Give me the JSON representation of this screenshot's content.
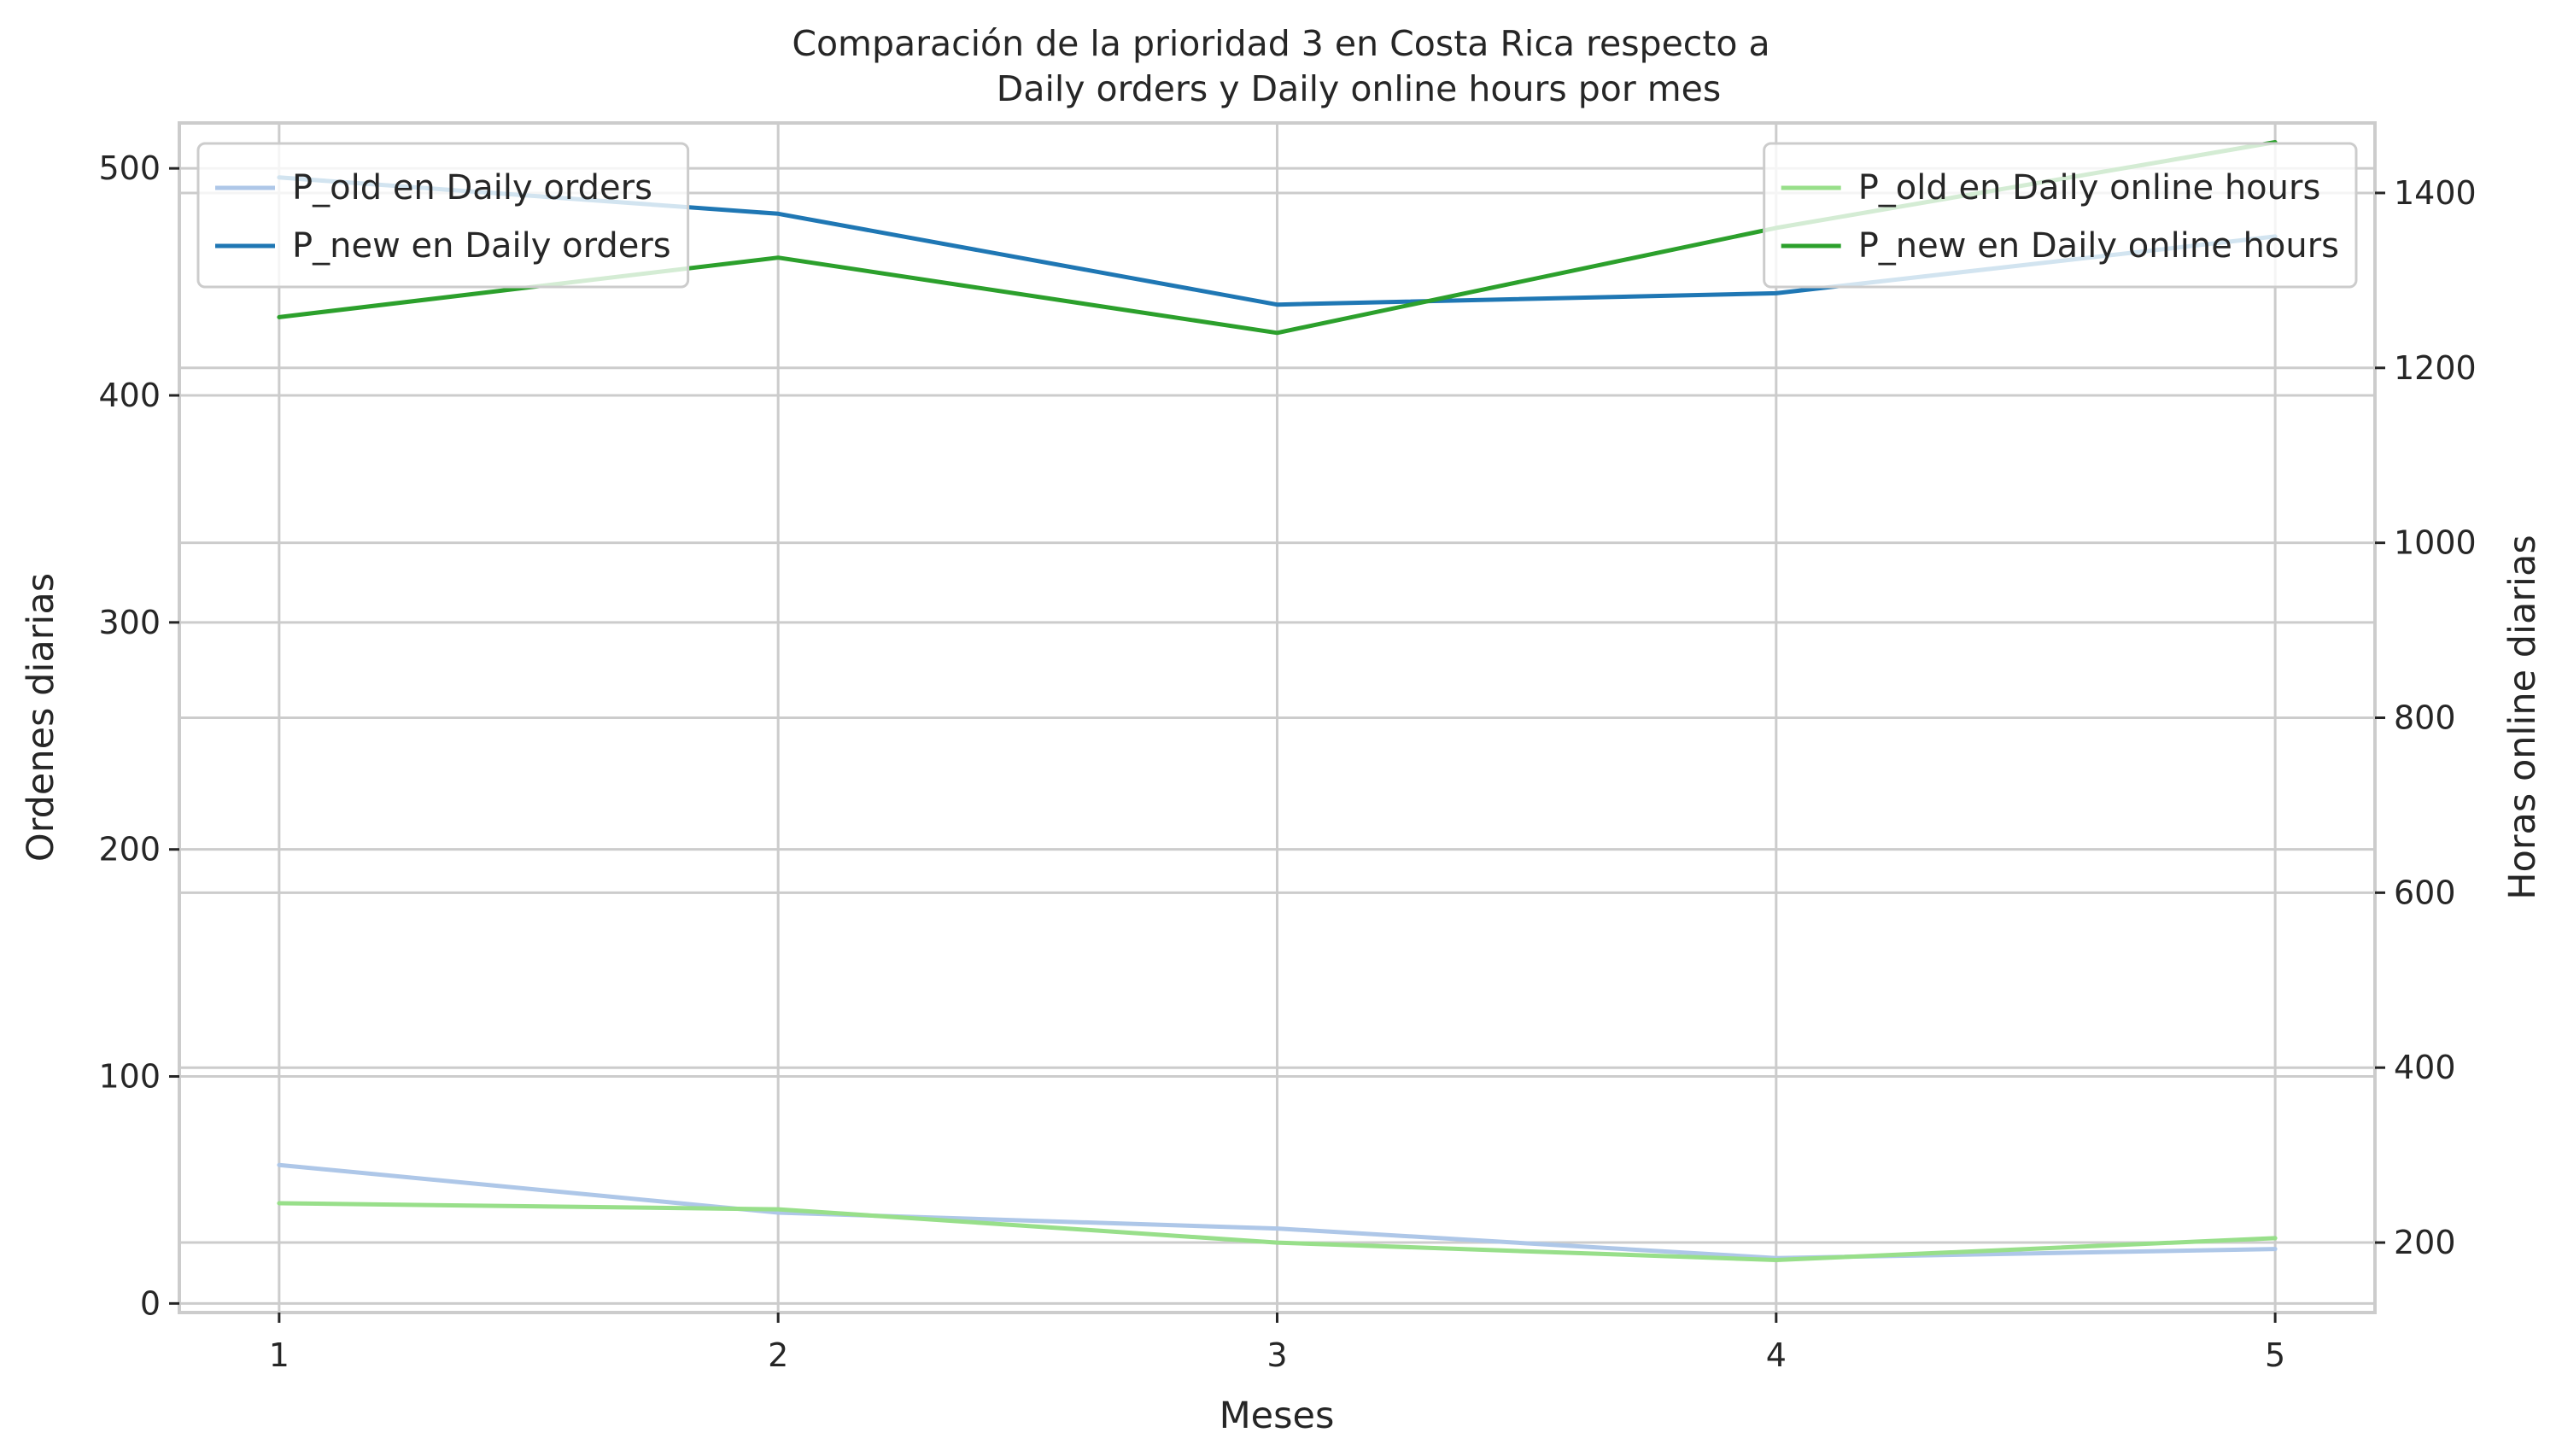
{
  "chart_data": {
    "type": "line",
    "title_line1": "Comparación de la prioridad 3 en Costa Rica respecto a",
    "title_line2": "Daily orders y Daily online hours por mes",
    "xlabel": "Meses",
    "ylabel_left": "Ordenes diarias",
    "ylabel_right": "Horas online diarias",
    "x": [
      1,
      2,
      3,
      4,
      5
    ],
    "x_tick_labels": [
      "1",
      "2",
      "3",
      "4",
      "5"
    ],
    "xlim": [
      0.8,
      5.2
    ],
    "ylim_left": [
      -4,
      520
    ],
    "yticks_left": [
      0,
      100,
      200,
      300,
      400,
      500
    ],
    "ylim_right": [
      120,
      1480
    ],
    "yticks_right": [
      200,
      400,
      600,
      800,
      1000,
      1200,
      1400
    ],
    "grid": true,
    "series": [
      {
        "name": "P_old en Daily orders",
        "axis": "left",
        "color": "#aec7e8",
        "values": [
          61,
          40,
          33,
          20,
          24
        ]
      },
      {
        "name": "P_new en Daily orders",
        "axis": "left",
        "color": "#1f77b4",
        "values": [
          496,
          480,
          440,
          445,
          470
        ]
      },
      {
        "name": "P_old en Daily online hours",
        "axis": "right",
        "color": "#98df8a",
        "values": [
          245,
          238,
          200,
          180,
          205
        ]
      },
      {
        "name": "P_new en Daily online hours",
        "axis": "right",
        "color": "#2ca02c",
        "values": [
          1258,
          1326,
          1240,
          1360,
          1458
        ]
      }
    ],
    "legend_left_placement": "top-left",
    "legend_right_placement": "top-right"
  }
}
